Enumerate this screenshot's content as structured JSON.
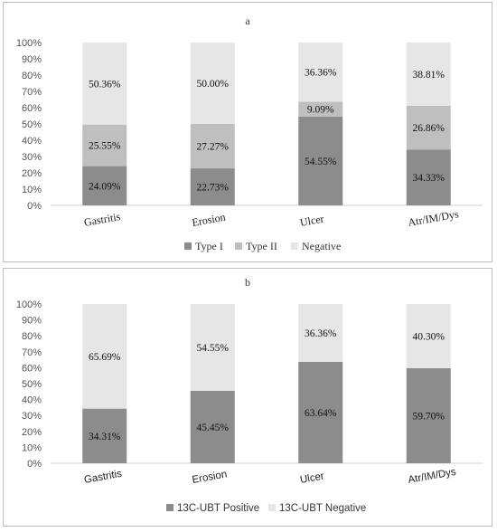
{
  "chart_data": [
    {
      "type": "bar",
      "stacked": true,
      "title": "a",
      "categories": [
        "Gastritis",
        "Erosion",
        "Ulcer",
        "Atr/IM/Dys"
      ],
      "series": [
        {
          "name": "Type I",
          "values": [
            24.09,
            22.73,
            54.55,
            34.33
          ],
          "labels": [
            "24.09%",
            "22.73%",
            "54.55%",
            "34.33%"
          ],
          "color": "#8c8c8c"
        },
        {
          "name": "Type II",
          "values": [
            25.55,
            27.27,
            9.09,
            26.86
          ],
          "labels": [
            "25.55%",
            "27.27%",
            "9.09%",
            "26.86%"
          ],
          "color": "#bfbfbf"
        },
        {
          "name": "Negative",
          "values": [
            50.36,
            50.0,
            36.36,
            38.81
          ],
          "labels": [
            "50.36%",
            "50.00%",
            "36.36%",
            "38.81%"
          ],
          "color": "#e6e6e6"
        }
      ],
      "ylim": [
        0,
        100
      ],
      "y_ticks": [
        "0%",
        "10%",
        "20%",
        "30%",
        "40%",
        "50%",
        "60%",
        "70%",
        "80%",
        "90%",
        "100%"
      ],
      "grid": false,
      "legend": "bottom"
    },
    {
      "type": "bar",
      "stacked": true,
      "title": "b",
      "categories": [
        "Gastritis",
        "Erosion",
        "Ulcer",
        "Atr/IM/Dys"
      ],
      "series": [
        {
          "name": "13C-UBT Positive",
          "values": [
            34.31,
            45.45,
            63.64,
            59.7
          ],
          "labels": [
            "34.31%",
            "45.45%",
            "63.64%",
            "59.70%"
          ],
          "color": "#8c8c8c"
        },
        {
          "name": "13C-UBT Negative",
          "values": [
            65.69,
            54.55,
            36.36,
            40.3
          ],
          "labels": [
            "65.69%",
            "54.55%",
            "36.36%",
            "40.30%"
          ],
          "color": "#e6e6e6"
        }
      ],
      "ylim": [
        0,
        100
      ],
      "y_ticks": [
        "0%",
        "10%",
        "20%",
        "30%",
        "40%",
        "50%",
        "60%",
        "70%",
        "80%",
        "90%",
        "100%"
      ],
      "grid": false,
      "legend": "bottom"
    }
  ]
}
